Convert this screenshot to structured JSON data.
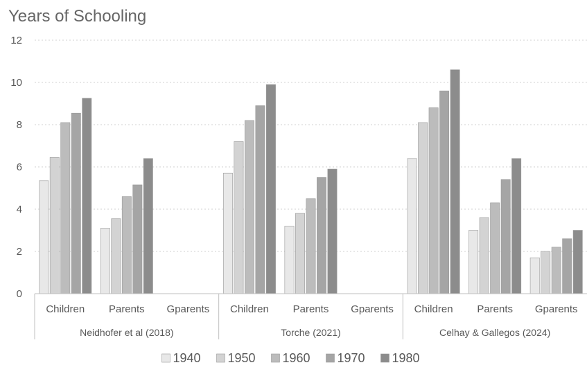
{
  "chart_data": {
    "type": "bar",
    "title": "Years of Schooling",
    "xlabel": "",
    "ylabel": "",
    "ylim": [
      0,
      12
    ],
    "yticks": [
      "0",
      "2",
      "4",
      "6",
      "8",
      "10",
      "12"
    ],
    "grid": true,
    "legend_position": "bottom",
    "groups": [
      {
        "name": "Neidhofer et al (2018)",
        "categories": [
          "Children",
          "Parents",
          "Gparents"
        ]
      },
      {
        "name": "Torche (2021)",
        "categories": [
          "Children",
          "Parents",
          "Gparents"
        ]
      },
      {
        "name": "Celhay & Gallegos (2024)",
        "categories": [
          "Children",
          "Parents",
          "Gparents"
        ]
      }
    ],
    "series": [
      {
        "name": "1940",
        "color": "#e8e8e8",
        "values": [
          5.35,
          3.1,
          null,
          5.7,
          3.2,
          null,
          6.4,
          3.0,
          1.7
        ]
      },
      {
        "name": "1950",
        "color": "#d3d3d3",
        "values": [
          6.45,
          3.55,
          null,
          7.2,
          3.8,
          null,
          8.1,
          3.6,
          2.0
        ]
      },
      {
        "name": "1960",
        "color": "#bcbcbc",
        "values": [
          8.1,
          4.6,
          null,
          8.2,
          4.5,
          null,
          8.8,
          4.3,
          2.2
        ]
      },
      {
        "name": "1970",
        "color": "#a5a5a5",
        "values": [
          8.55,
          5.15,
          null,
          8.9,
          5.5,
          null,
          9.6,
          5.4,
          2.6
        ]
      },
      {
        "name": "1980",
        "color": "#8c8c8c",
        "values": [
          9.25,
          6.4,
          null,
          9.9,
          5.9,
          null,
          10.6,
          6.4,
          3.0
        ]
      }
    ]
  }
}
